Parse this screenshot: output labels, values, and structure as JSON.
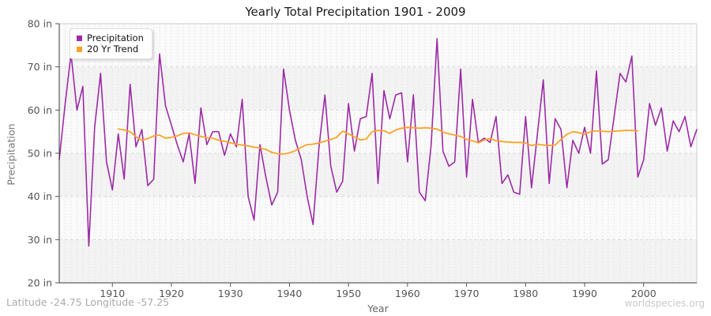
{
  "footer": {
    "left": "Latitude -24.75 Longitude -57.25",
    "right": "worldspecies.org"
  },
  "chart_data": {
    "type": "line",
    "title": "Yearly Total Precipitation 1901 - 2009",
    "xlabel": "Year",
    "ylabel": "Precipitation",
    "x_start": 1901,
    "x_end": 2009,
    "ylim": [
      20,
      80
    ],
    "ytick_values": [
      20,
      30,
      40,
      50,
      60,
      70,
      80
    ],
    "ytick_labels": [
      "20 in",
      "30 in",
      "40 in",
      "50 in",
      "60 in",
      "70 in",
      "80 in"
    ],
    "xtick_values": [
      1910,
      1920,
      1930,
      1940,
      1950,
      1960,
      1970,
      1980,
      1990,
      2000
    ],
    "grid": true,
    "band_colors": [
      "#f3f3f3",
      "#fafafa"
    ],
    "legend_position": "top-left",
    "series": [
      {
        "name": "Precipitation",
        "color": "#9C2BA6",
        "x_start": 1901,
        "values": [
          48.5,
          61.5,
          73,
          60,
          65.5,
          28.5,
          56,
          68.5,
          48,
          41.5,
          54.5,
          44,
          66,
          51.5,
          55.5,
          42.5,
          44,
          73,
          61,
          56.5,
          52,
          48,
          54.5,
          43,
          60.5,
          52,
          55,
          55,
          49.5,
          54.5,
          51.5,
          62.5,
          40,
          34.5,
          52,
          44.5,
          38,
          41,
          69.5,
          60,
          53,
          48.5,
          40,
          33.5,
          51.5,
          63.5,
          47,
          41,
          43.5,
          61.5,
          50.5,
          58,
          58.5,
          68.5,
          43,
          64.5,
          58,
          63.5,
          64,
          48,
          63.5,
          41,
          39,
          52,
          76.5,
          50.5,
          47,
          48,
          69.5,
          44.5,
          62.5,
          52.5,
          53.5,
          52.5,
          58.5,
          43,
          45,
          41,
          40.5,
          58.5,
          42,
          54.5,
          67,
          43,
          58,
          55.5,
          42,
          53,
          50,
          56,
          50,
          69,
          47.5,
          48.5,
          58.5,
          68.5,
          66.5,
          72.5,
          44.5,
          48.5,
          61.5,
          56.5,
          60.5,
          50.5,
          57.5,
          55,
          58.5,
          51.5,
          55.5
        ]
      },
      {
        "name": "20 Yr Trend",
        "color": "#FFA227",
        "x_start": 1911,
        "values": [
          55.6,
          55.4,
          55.0,
          53.8,
          53.0,
          53.4,
          54.0,
          54.2,
          53.5,
          53.7,
          54.0,
          54.6,
          54.7,
          54.3,
          53.9,
          53.6,
          53.5,
          53.0,
          52.8,
          52.4,
          52.1,
          51.9,
          51.7,
          51.4,
          51.2,
          50.9,
          50.2,
          49.9,
          49.8,
          50.1,
          50.6,
          51.4,
          52.0,
          52.1,
          52.4,
          52.8,
          53.2,
          53.7,
          55.1,
          54.5,
          53.8,
          53.1,
          53.3,
          55.0,
          55.3,
          55.2,
          54.6,
          55.4,
          55.8,
          56.0,
          55.9,
          55.8,
          55.9,
          55.8,
          55.6,
          54.9,
          54.5,
          54.2,
          53.9,
          53.2,
          52.9,
          52.4,
          53.1,
          53.4,
          52.9,
          52.7,
          52.6,
          52.5,
          52.5,
          52.4,
          51.8,
          52.1,
          51.9,
          51.8,
          51.9,
          53.2,
          54.4,
          55.0,
          54.8,
          54.4,
          55.0,
          55.2,
          55.1,
          55.0,
          55.1,
          55.2,
          55.3,
          55.3,
          55.2
        ]
      }
    ]
  }
}
